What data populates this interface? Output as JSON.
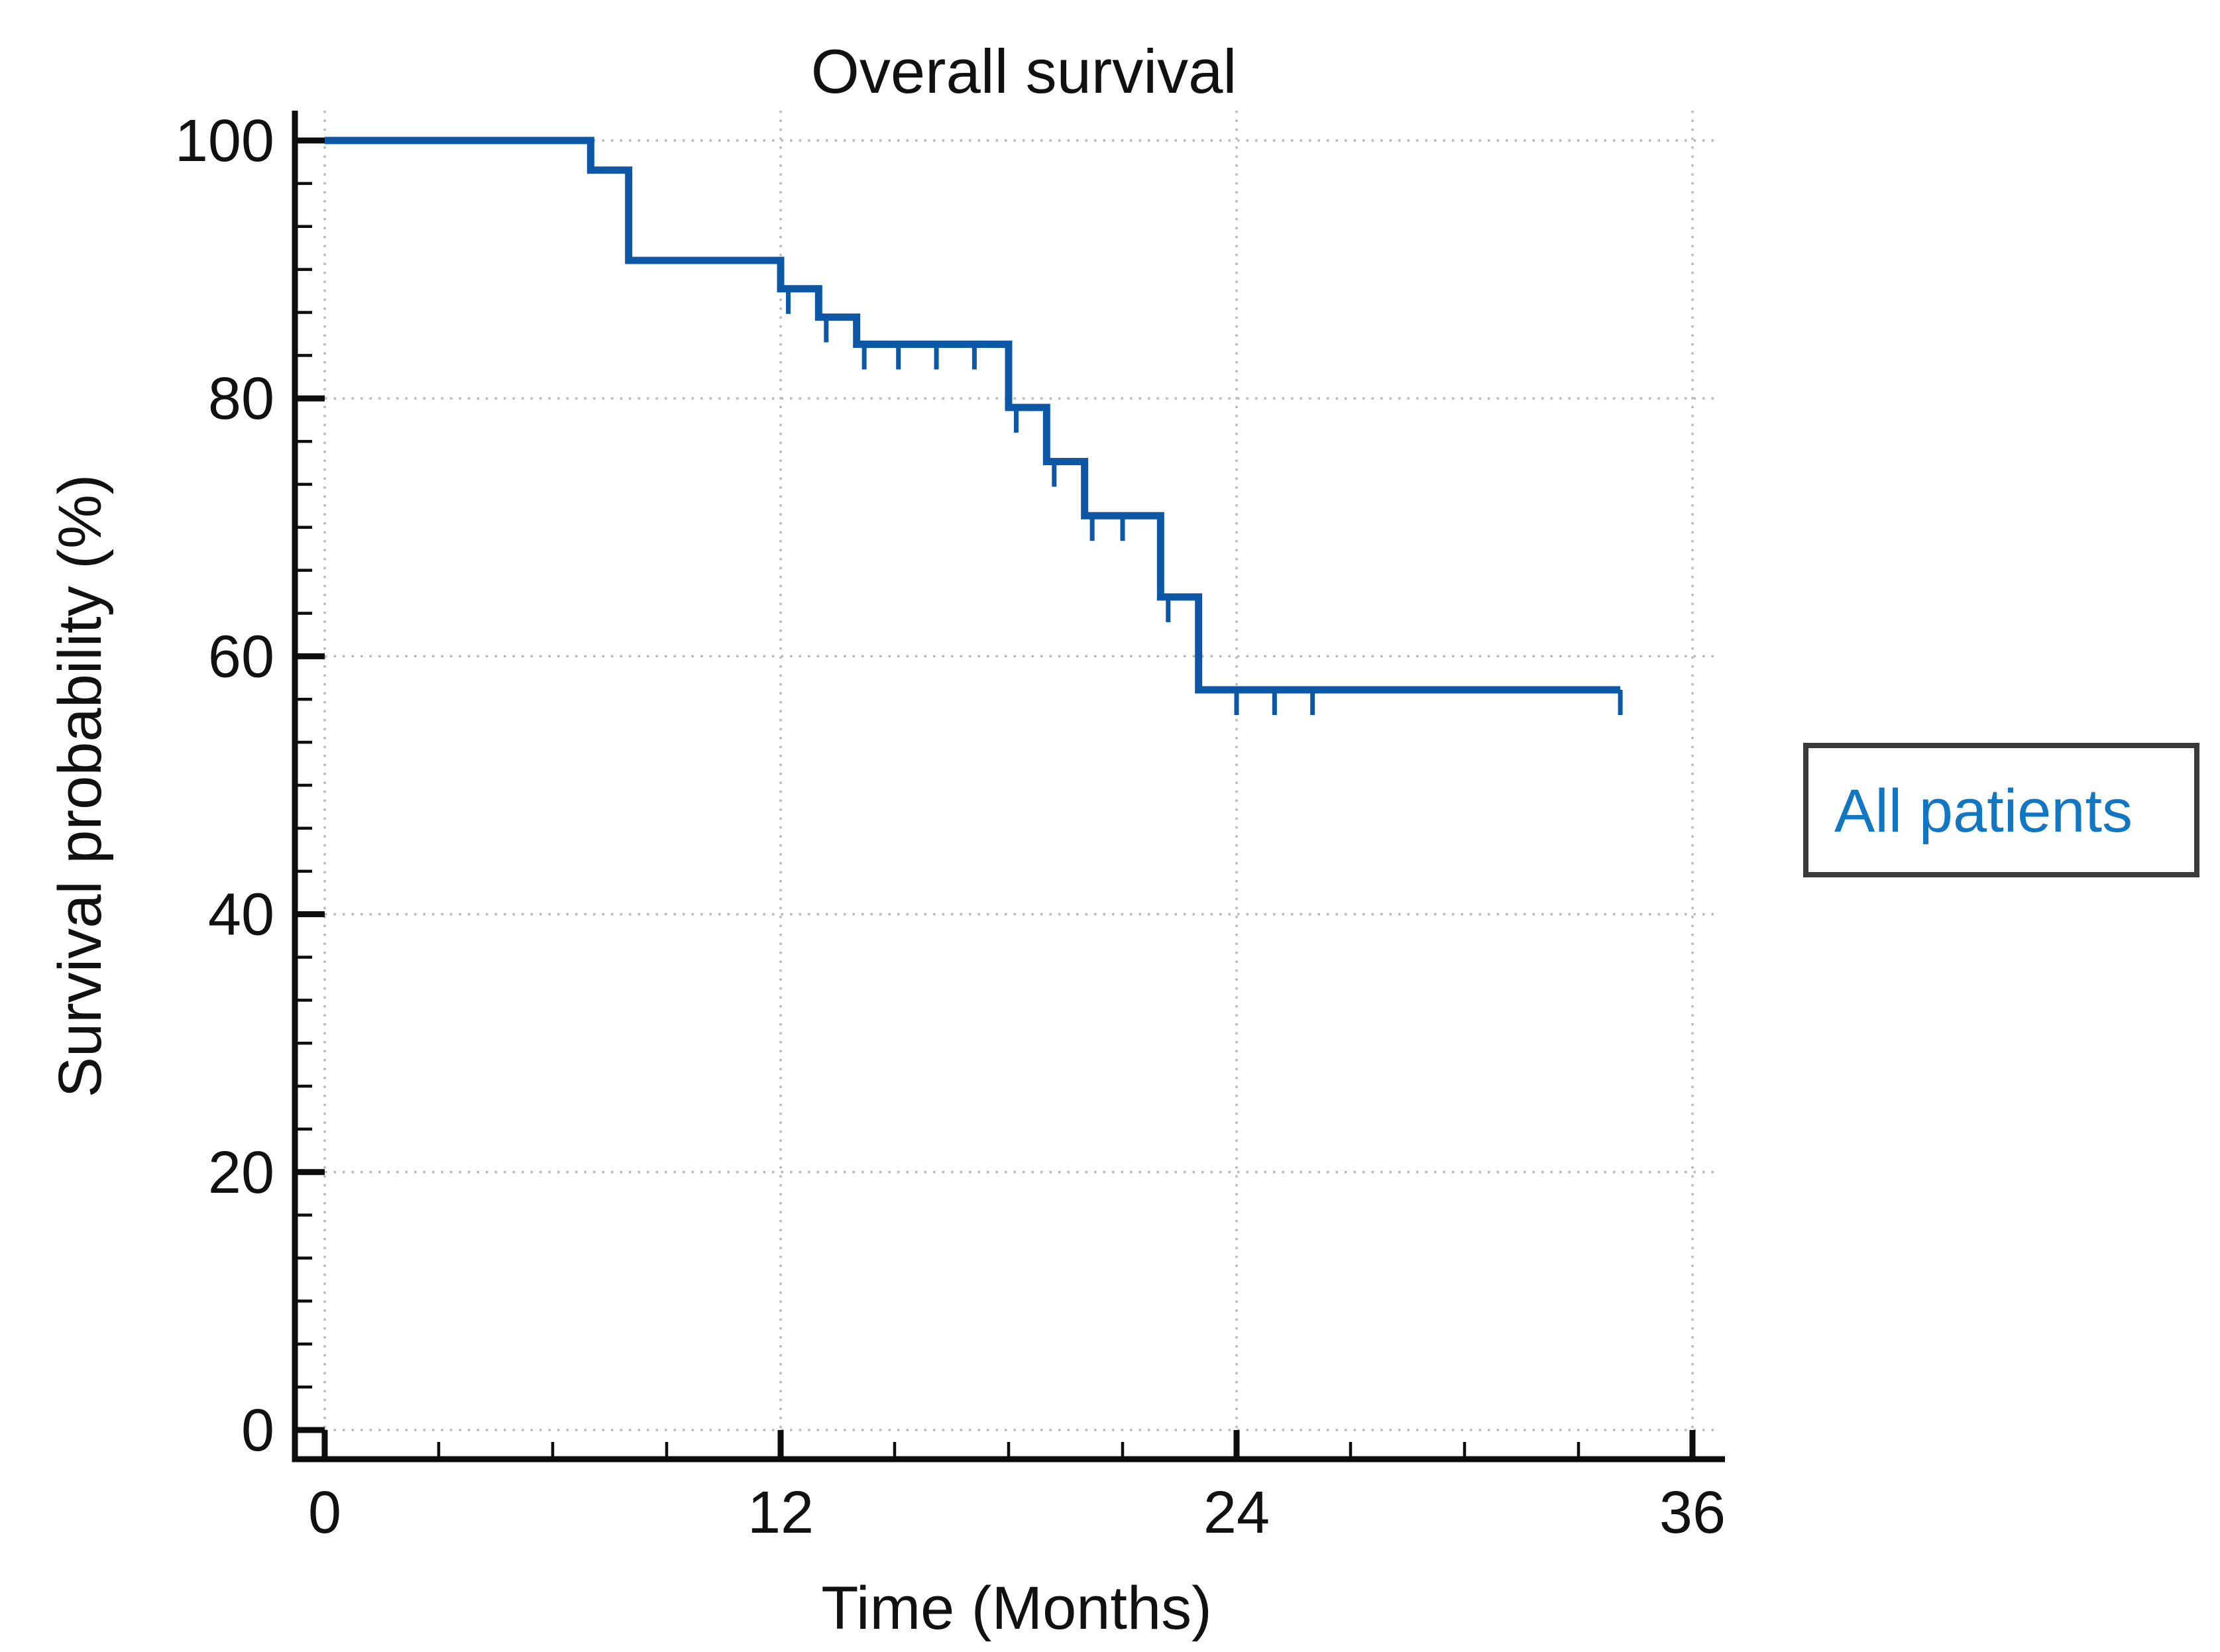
{
  "figure": {
    "title": "Overall survival",
    "background": "#ffffff"
  },
  "legend": {
    "label": "All patients",
    "text_color": "#1277c2",
    "border_color": "#3a3a3a",
    "position": "right"
  },
  "colors": {
    "curve_blue": "#0c57a6",
    "legend_blue": "#1277c2",
    "axis_black": "#0d0d0d",
    "gridline_gray": "#b9b9b9",
    "text_black": "#111111"
  },
  "chart_data": {
    "type": "line",
    "subtype": "kaplan-meier-step",
    "title": "Overall survival",
    "xlabel": "Time (Months)",
    "ylabel": "Survival probability (%)",
    "xlim": [
      0,
      36
    ],
    "ylim": [
      0,
      100
    ],
    "x_major_ticks": [
      0,
      12,
      24,
      36
    ],
    "x_minor_tick_step": 3,
    "y_major_ticks": [
      0,
      20,
      40,
      60,
      80,
      100
    ],
    "y_minor_divisions_per_major": 6,
    "grid": "dotted, at major ticks only",
    "legend_position": "right of plot, boxed",
    "series": [
      {
        "name": "All patients",
        "color": "#0c57a6",
        "steps": [
          {
            "t": 0,
            "s": 100
          },
          {
            "t": 7,
            "s": 97.7
          },
          {
            "t": 8,
            "s": 90.7
          },
          {
            "t": 12,
            "s": 88.5
          },
          {
            "t": 13,
            "s": 86.3
          },
          {
            "t": 14,
            "s": 84.2
          },
          {
            "t": 18,
            "s": 79.3
          },
          {
            "t": 19,
            "s": 75.1
          },
          {
            "t": 20,
            "s": 70.9
          },
          {
            "t": 22,
            "s": 64.6
          },
          {
            "t": 23,
            "s": 57.4
          }
        ],
        "end_time": 34.1,
        "censor_marks": [
          {
            "t": 12.2,
            "s": 88.5
          },
          {
            "t": 13.2,
            "s": 86.3
          },
          {
            "t": 14.2,
            "s": 84.2
          },
          {
            "t": 15.1,
            "s": 84.2
          },
          {
            "t": 16.1,
            "s": 84.2
          },
          {
            "t": 17.1,
            "s": 84.2
          },
          {
            "t": 18.2,
            "s": 79.3
          },
          {
            "t": 19.2,
            "s": 75.1
          },
          {
            "t": 20.2,
            "s": 70.9
          },
          {
            "t": 21.0,
            "s": 70.9
          },
          {
            "t": 22.2,
            "s": 64.6
          },
          {
            "t": 24.0,
            "s": 57.4
          },
          {
            "t": 25.0,
            "s": 57.4
          },
          {
            "t": 26.0,
            "s": 57.4
          },
          {
            "t": 34.1,
            "s": 57.4
          }
        ]
      }
    ]
  }
}
